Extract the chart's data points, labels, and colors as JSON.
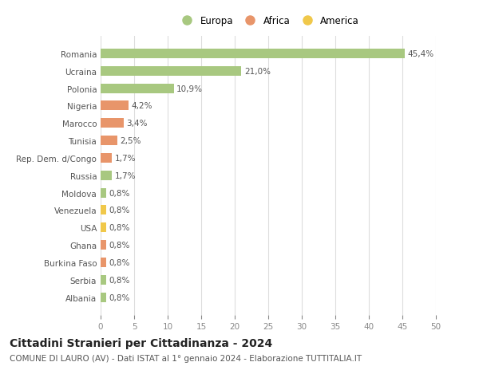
{
  "categories": [
    "Albania",
    "Serbia",
    "Burkina Faso",
    "Ghana",
    "USA",
    "Venezuela",
    "Moldova",
    "Russia",
    "Rep. Dem. d/Congo",
    "Tunisia",
    "Marocco",
    "Nigeria",
    "Polonia",
    "Ucraina",
    "Romania"
  ],
  "values": [
    0.8,
    0.8,
    0.8,
    0.8,
    0.8,
    0.8,
    0.8,
    1.7,
    1.7,
    2.5,
    3.4,
    4.2,
    10.9,
    21.0,
    45.4
  ],
  "labels": [
    "0,8%",
    "0,8%",
    "0,8%",
    "0,8%",
    "0,8%",
    "0,8%",
    "0,8%",
    "1,7%",
    "1,7%",
    "2,5%",
    "3,4%",
    "4,2%",
    "10,9%",
    "21,0%",
    "45,4%"
  ],
  "colors": [
    "#a8c880",
    "#a8c880",
    "#e8956a",
    "#e8956a",
    "#f0c84a",
    "#f0c84a",
    "#a8c880",
    "#a8c880",
    "#e8956a",
    "#e8956a",
    "#e8956a",
    "#e8956a",
    "#a8c880",
    "#a8c880",
    "#a8c880"
  ],
  "legend": [
    {
      "label": "Europa",
      "color": "#a8c880"
    },
    {
      "label": "Africa",
      "color": "#e8956a"
    },
    {
      "label": "America",
      "color": "#f0c84a"
    }
  ],
  "title": "Cittadini Stranieri per Cittadinanza - 2024",
  "subtitle": "COMUNE DI LAURO (AV) - Dati ISTAT al 1° gennaio 2024 - Elaborazione TUTTITALIA.IT",
  "xlim": [
    0,
    50
  ],
  "xticks": [
    0,
    5,
    10,
    15,
    20,
    25,
    30,
    35,
    40,
    45,
    50
  ],
  "bg_color": "#ffffff",
  "grid_color": "#dddddd",
  "bar_height": 0.55,
  "label_fontsize": 7.5,
  "tick_fontsize": 7.5,
  "title_fontsize": 10,
  "subtitle_fontsize": 7.5,
  "legend_fontsize": 8.5
}
